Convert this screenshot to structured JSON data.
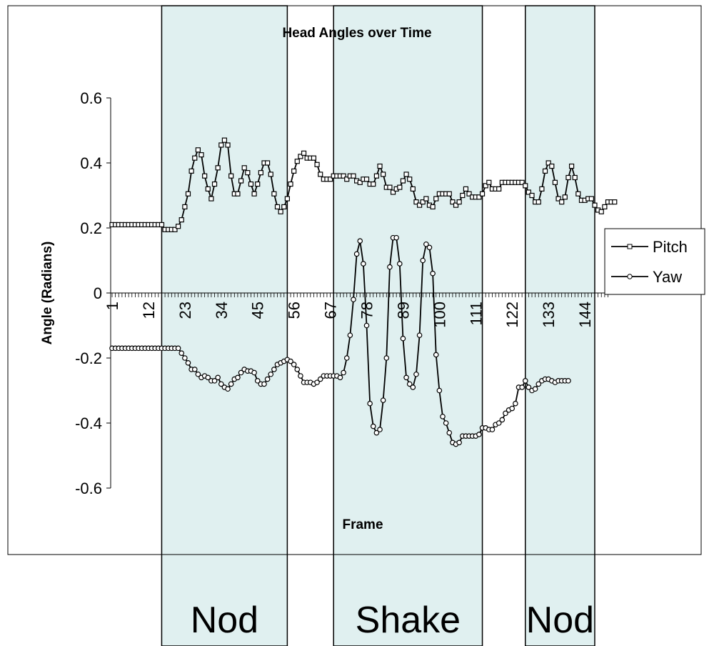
{
  "chart_data": {
    "type": "line",
    "title": "Head Angles over Time",
    "xlabel": "Frame",
    "ylabel": "Angle (Radians)",
    "ylim": [
      -0.7,
      0.7
    ],
    "y_ticks": [
      0.6,
      0.4,
      0.2,
      0,
      -0.2,
      -0.4,
      -0.6
    ],
    "y_tick_labels": [
      "0.6",
      "0.4",
      "0.2",
      "0",
      "-0.2",
      "-0.4",
      "-0.6"
    ],
    "x_range": [
      1,
      151
    ],
    "x_tick_labels": [
      "1",
      "12",
      "23",
      "34",
      "45",
      "56",
      "67",
      "78",
      "89",
      "100",
      "111",
      "122",
      "133",
      "144"
    ],
    "legend": {
      "position": "right",
      "entries": [
        "Pitch",
        "Yaw"
      ]
    },
    "regions": [
      {
        "label": "Nod",
        "x_start": 16,
        "x_end": 54
      },
      {
        "label": "Shake",
        "x_start": 68,
        "x_end": 113
      },
      {
        "label": "Nod",
        "x_start": 126,
        "x_end": 147
      }
    ],
    "region_color": "#e0f0f0",
    "series": [
      {
        "name": "Pitch",
        "marker": "square",
        "values": [
          0.21,
          0.21,
          0.21,
          0.21,
          0.21,
          0.21,
          0.21,
          0.21,
          0.21,
          0.21,
          0.21,
          0.21,
          0.21,
          0.21,
          0.21,
          0.21,
          0.195,
          0.195,
          0.195,
          0.195,
          0.205,
          0.225,
          0.265,
          0.305,
          0.375,
          0.415,
          0.44,
          0.425,
          0.36,
          0.32,
          0.29,
          0.335,
          0.385,
          0.455,
          0.47,
          0.455,
          0.36,
          0.305,
          0.305,
          0.345,
          0.385,
          0.37,
          0.335,
          0.305,
          0.335,
          0.37,
          0.4,
          0.4,
          0.365,
          0.305,
          0.265,
          0.25,
          0.265,
          0.29,
          0.335,
          0.375,
          0.405,
          0.42,
          0.43,
          0.415,
          0.415,
          0.415,
          0.395,
          0.365,
          0.35,
          0.35,
          0.35,
          0.36,
          0.36,
          0.36,
          0.36,
          0.35,
          0.36,
          0.36,
          0.345,
          0.34,
          0.35,
          0.35,
          0.335,
          0.335,
          0.36,
          0.39,
          0.365,
          0.325,
          0.325,
          0.31,
          0.32,
          0.325,
          0.345,
          0.365,
          0.35,
          0.32,
          0.28,
          0.27,
          0.28,
          0.29,
          0.27,
          0.265,
          0.29,
          0.305,
          0.305,
          0.305,
          0.305,
          0.28,
          0.27,
          0.28,
          0.3,
          0.32,
          0.305,
          0.295,
          0.295,
          0.295,
          0.305,
          0.33,
          0.34,
          0.32,
          0.32,
          0.32,
          0.34,
          0.34,
          0.34,
          0.34,
          0.34,
          0.34,
          0.34,
          0.33,
          0.31,
          0.3,
          0.28,
          0.28,
          0.32,
          0.375,
          0.4,
          0.39,
          0.34,
          0.29,
          0.28,
          0.295,
          0.355,
          0.39,
          0.355,
          0.305,
          0.285,
          0.285,
          0.29,
          0.29,
          0.27,
          0.255,
          0.25,
          0.265,
          0.28,
          0.28,
          0.28
        ]
      },
      {
        "name": "Yaw",
        "marker": "circle",
        "values": [
          -0.17,
          -0.17,
          -0.17,
          -0.17,
          -0.17,
          -0.17,
          -0.17,
          -0.17,
          -0.17,
          -0.17,
          -0.17,
          -0.17,
          -0.17,
          -0.17,
          -0.17,
          -0.17,
          -0.17,
          -0.17,
          -0.17,
          -0.17,
          -0.17,
          -0.185,
          -0.2,
          -0.215,
          -0.235,
          -0.235,
          -0.25,
          -0.26,
          -0.255,
          -0.26,
          -0.27,
          -0.27,
          -0.26,
          -0.28,
          -0.29,
          -0.295,
          -0.28,
          -0.265,
          -0.26,
          -0.245,
          -0.235,
          -0.24,
          -0.24,
          -0.245,
          -0.27,
          -0.28,
          -0.28,
          -0.265,
          -0.25,
          -0.235,
          -0.22,
          -0.215,
          -0.21,
          -0.205,
          -0.21,
          -0.22,
          -0.235,
          -0.255,
          -0.275,
          -0.275,
          -0.275,
          -0.28,
          -0.275,
          -0.265,
          -0.255,
          -0.255,
          -0.255,
          -0.255,
          -0.255,
          -0.26,
          -0.245,
          -0.2,
          -0.13,
          -0.02,
          0.12,
          0.16,
          0.09,
          -0.1,
          -0.34,
          -0.41,
          -0.43,
          -0.42,
          -0.33,
          -0.2,
          0.08,
          0.17,
          0.17,
          0.09,
          -0.14,
          -0.26,
          -0.28,
          -0.29,
          -0.25,
          -0.13,
          0.1,
          0.15,
          0.14,
          0.06,
          -0.19,
          -0.3,
          -0.38,
          -0.4,
          -0.43,
          -0.46,
          -0.465,
          -0.46,
          -0.44,
          -0.44,
          -0.44,
          -0.44,
          -0.44,
          -0.435,
          -0.415,
          -0.415,
          -0.42,
          -0.42,
          -0.405,
          -0.4,
          -0.39,
          -0.37,
          -0.36,
          -0.355,
          -0.34,
          -0.29,
          -0.29,
          -0.27,
          -0.29,
          -0.3,
          -0.295,
          -0.28,
          -0.27,
          -0.265,
          -0.265,
          -0.27,
          -0.275,
          -0.27,
          -0.27,
          -0.27,
          -0.27
        ]
      }
    ]
  }
}
